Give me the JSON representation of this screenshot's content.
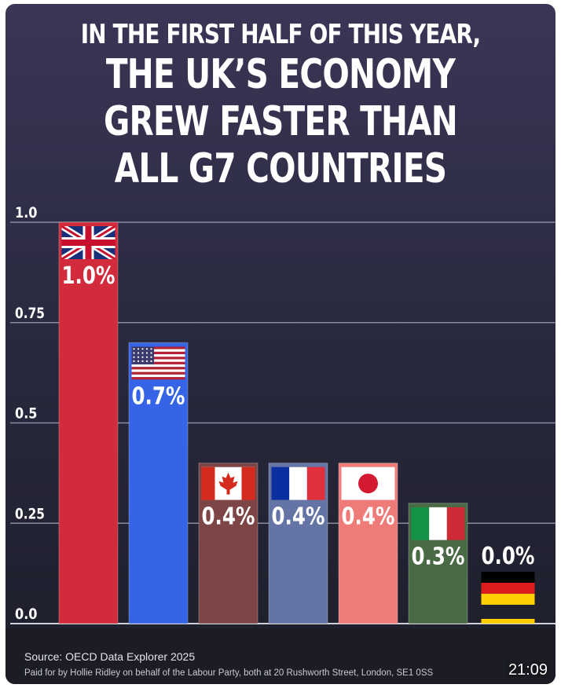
{
  "headline": {
    "line1": "IN THE FIRST HALF OF THIS YEAR,",
    "line2": "THE UK’S ECONOMY",
    "line3": "GREW FASTER THAN",
    "line4": "ALL G7 COUNTRIES"
  },
  "chart_data": {
    "type": "bar",
    "categories": [
      "UK",
      "US",
      "Canada",
      "France",
      "Japan",
      "Italy",
      "Germany"
    ],
    "values": [
      1.0,
      0.7,
      0.4,
      0.4,
      0.4,
      0.3,
      0.0
    ],
    "data_labels": [
      "1.0%",
      "0.7%",
      "0.4%",
      "0.4%",
      "0.4%",
      "0.3%",
      "0.0%"
    ],
    "flags": [
      "uk-flag",
      "us-flag",
      "canada-flag",
      "france-flag",
      "japan-flag",
      "italy-flag",
      "germany-flag"
    ],
    "colors": [
      "#d22b3c",
      "#3565e6",
      "#7d4545",
      "#6474a4",
      "#ee7b78",
      "#4a6a45",
      "#2a2a40"
    ],
    "yticks": [
      "0.0",
      "0.25",
      "0.5",
      "0.75",
      "1.0"
    ],
    "ylim": [
      0,
      1.0
    ],
    "grid": true
  },
  "footer": {
    "source": "Source: OECD Data Explorer 2025",
    "paid_by": "Paid for by Hollie Ridley on behalf of the Labour Party, both at 20 Rushworth Street, London, SE1 0SS"
  },
  "video_timer": "21:09"
}
